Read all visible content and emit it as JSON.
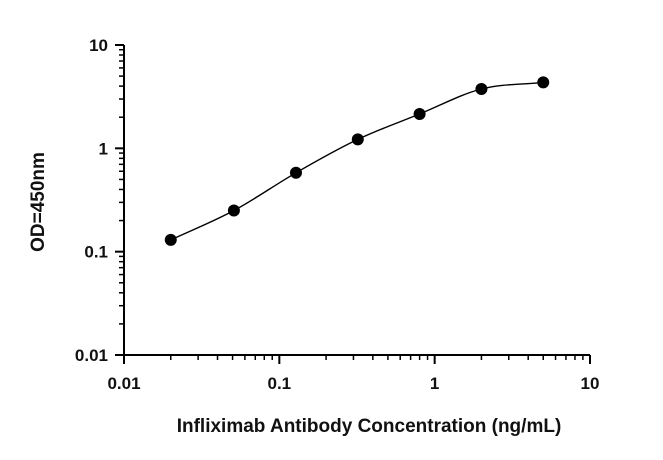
{
  "chart_data": {
    "type": "scatter",
    "xlabel": "Infliximab Antibody Concentration (ng/mL)",
    "ylabel": "OD=450nm",
    "x_scale": "log",
    "y_scale": "log",
    "xlim": [
      0.01,
      10
    ],
    "ylim": [
      0.01,
      10
    ],
    "x_ticks": [
      {
        "value": 0.01,
        "label": "0.01"
      },
      {
        "value": 0.1,
        "label": "0.1"
      },
      {
        "value": 1,
        "label": "1"
      },
      {
        "value": 10,
        "label": "10"
      }
    ],
    "y_ticks": [
      {
        "value": 0.01,
        "label": "0.01"
      },
      {
        "value": 0.1,
        "label": "0.1"
      },
      {
        "value": 1,
        "label": "1"
      },
      {
        "value": 10,
        "label": "10"
      }
    ],
    "grid": false,
    "series": [
      {
        "points": [
          {
            "x": 0.02,
            "y": 0.13
          },
          {
            "x": 0.051,
            "y": 0.25
          },
          {
            "x": 0.128,
            "y": 0.58
          },
          {
            "x": 0.32,
            "y": 1.22
          },
          {
            "x": 0.8,
            "y": 2.15
          },
          {
            "x": 2.0,
            "y": 3.75
          },
          {
            "x": 5.0,
            "y": 4.35
          }
        ],
        "fit_curve": true
      }
    ],
    "colors": {
      "marker": "#000000",
      "line": "#000000",
      "axis": "#000000"
    }
  }
}
